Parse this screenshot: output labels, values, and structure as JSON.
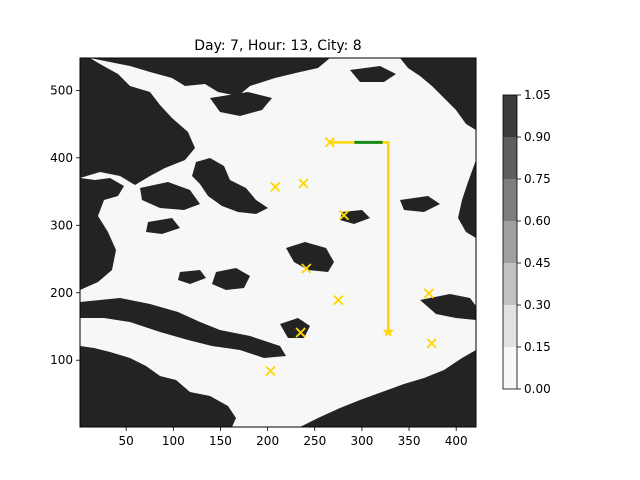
{
  "chart_data": {
    "type": "heatmap",
    "title": "Day: 7, Hour: 13, City: 8",
    "xlabel": "",
    "ylabel": "",
    "xlim": [
      1,
      421
    ],
    "ylim": [
      1,
      548
    ],
    "x_ticks": [
      50,
      100,
      150,
      200,
      250,
      300,
      350,
      400
    ],
    "y_ticks": [
      100,
      200,
      300,
      400,
      500
    ],
    "colorbar": {
      "levels": [
        0.0,
        0.15,
        0.3,
        0.45,
        0.6,
        0.75,
        0.9,
        1.05
      ],
      "tick_labels": [
        "0.00",
        "0.15",
        "0.30",
        "0.45",
        "0.60",
        "0.75",
        "0.90",
        "1.05"
      ],
      "colors": [
        "#f7f7f7",
        "#e1e1e1",
        "#c2c2c2",
        "#a0a0a0",
        "#7e7e7e",
        "#5e5e5e",
        "#3d3d3d",
        "#232323"
      ]
    },
    "cities": [
      {
        "x": 266,
        "y": 423
      },
      {
        "x": 208,
        "y": 357
      },
      {
        "x": 238,
        "y": 362
      },
      {
        "x": 281,
        "y": 315
      },
      {
        "x": 241,
        "y": 236
      },
      {
        "x": 275,
        "y": 189
      },
      {
        "x": 371,
        "y": 199
      },
      {
        "x": 235,
        "y": 141
      },
      {
        "x": 374,
        "y": 125
      },
      {
        "x": 203,
        "y": 84
      }
    ],
    "start_city": {
      "x": 328,
      "y": 142
    },
    "path": [
      {
        "x": 328,
        "y": 142
      },
      {
        "x": 328,
        "y": 423
      },
      {
        "x": 266,
        "y": 423
      }
    ],
    "highlight_segment": [
      {
        "x": 292,
        "y": 423
      },
      {
        "x": 322,
        "y": 423
      }
    ],
    "colors": {
      "city": "#ffd700",
      "path": "#ffd700",
      "highlight": "#1a8a1a",
      "land": "#232323",
      "water": "#f7f7f7"
    }
  }
}
